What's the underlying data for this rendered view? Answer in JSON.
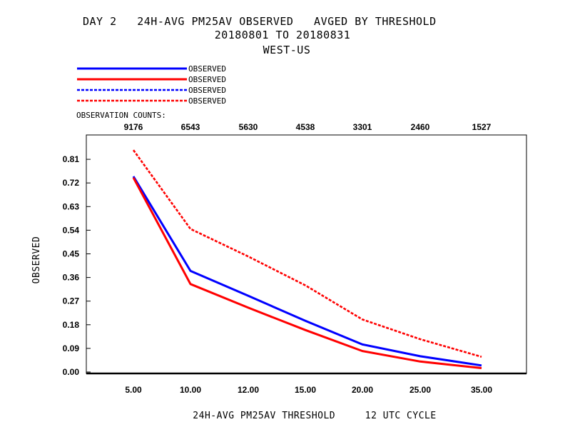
{
  "chart_data": {
    "type": "line",
    "title_lines": [
      "DAY 2   24H-AVG PM25AV OBSERVED   AVGED BY THRESHOLD",
      "20180801 TO 20180831",
      "WEST-US"
    ],
    "legend": [
      {
        "label": "OBSERVED",
        "color": "#0000ff",
        "dash": "solid"
      },
      {
        "label": "OBSERVED",
        "color": "#ff0000",
        "dash": "solid"
      },
      {
        "label": "OBSERVED",
        "color": "#0000ff",
        "dash": "dashed"
      },
      {
        "label": "OBSERVED",
        "color": "#ff0000",
        "dash": "dashed"
      }
    ],
    "counts_label": "OBSERVATION COUNTS:",
    "counts": [
      "9176",
      "6543",
      "5630",
      "4538",
      "3301",
      "2460",
      "1527"
    ],
    "categories": [
      "5.00",
      "10.00",
      "12.00",
      "15.00",
      "20.00",
      "25.00",
      "35.00"
    ],
    "ylabel": "OBSERVED",
    "xlabel": "24H-AVG PM25AV THRESHOLD     12 UTC CYCLE",
    "yticks": [
      "0.00",
      "0.09",
      "0.18",
      "0.27",
      "0.36",
      "0.45",
      "0.54",
      "0.63",
      "0.72",
      "0.81"
    ],
    "ylim": [
      0,
      0.9
    ],
    "series": [
      {
        "color": "#0000ff",
        "dash": "solid",
        "values": [
          0.745,
          0.385,
          0.29,
          0.195,
          0.105,
          0.06,
          0.025
        ]
      },
      {
        "color": "#ff0000",
        "dash": "solid",
        "values": [
          0.74,
          0.335,
          0.245,
          0.16,
          0.08,
          0.04,
          0.015
        ]
      },
      {
        "color": "#ff0000",
        "dash": "dashed",
        "values": [
          0.845,
          0.545,
          0.44,
          0.33,
          0.2,
          0.125,
          0.058
        ]
      }
    ]
  }
}
